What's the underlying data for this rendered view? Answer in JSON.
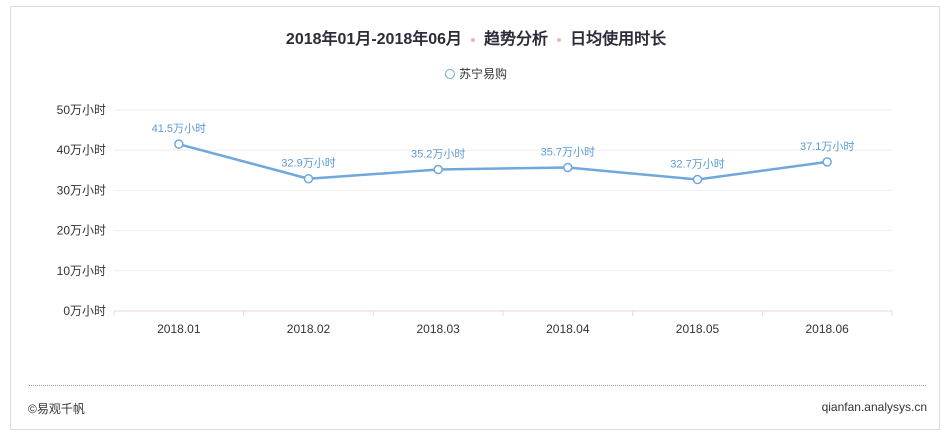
{
  "header": {
    "period": "2018年01月-2018年06月",
    "analysis": "趋势分析",
    "metric": "日均使用时长"
  },
  "footer": {
    "left": "©易观千帆",
    "right": "qianfan.analysys.cn"
  },
  "colors": {
    "series": "#6fa8dc",
    "label": "#5b9bd5",
    "grid": "#eeeeee",
    "axis": "#e8d6e0"
  },
  "chart_data": {
    "type": "line",
    "title": "2018年01月-2018年06月 · 趋势分析 · 日均使用时长",
    "xlabel": "",
    "ylabel": "",
    "categories": [
      "2018.01",
      "2018.02",
      "2018.03",
      "2018.04",
      "2018.05",
      "2018.06"
    ],
    "y_ticks": [
      0,
      10,
      20,
      30,
      40,
      50
    ],
    "y_tick_labels": [
      "0万小时",
      "10万小时",
      "20万小时",
      "30万小时",
      "40万小时",
      "50万小时"
    ],
    "ylim": [
      0,
      50
    ],
    "grid": true,
    "legend_position": "top-center",
    "series": [
      {
        "name": "苏宁易购",
        "values": [
          41.5,
          32.9,
          35.2,
          35.7,
          32.7,
          37.1
        ],
        "labels": [
          "41.5万小时",
          "32.9万小时",
          "35.2万小时",
          "35.7万小时",
          "32.7万小时",
          "37.1万小时"
        ]
      }
    ]
  }
}
